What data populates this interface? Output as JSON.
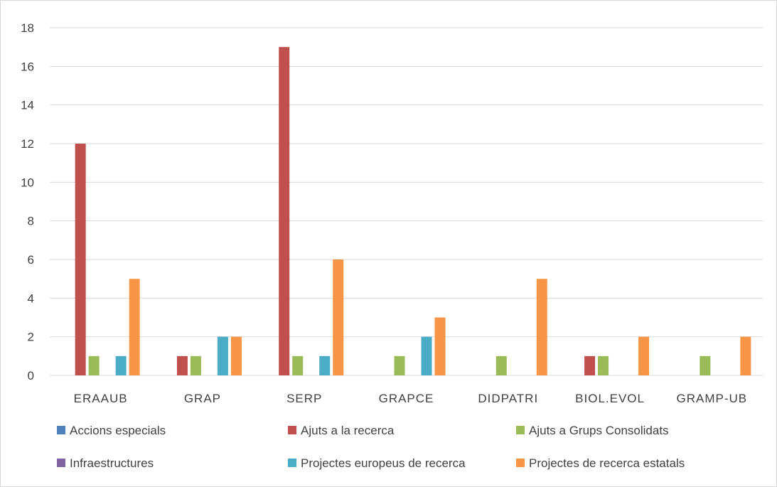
{
  "chart_data": {
    "type": "bar",
    "categories": [
      "ERAAUB",
      "GRAP",
      "SERP",
      "GRAPCE",
      "DIDPATRI",
      "BIOL.EVOL",
      "GRAMP-UB"
    ],
    "ylim": [
      0,
      18
    ],
    "yticks": [
      0,
      2,
      4,
      6,
      8,
      10,
      12,
      14,
      16,
      18
    ],
    "grid": true,
    "legend_position": "bottom",
    "series": [
      {
        "name": "Accions especials",
        "color": "#4f81bd",
        "values": [
          0,
          0,
          0,
          0,
          0,
          0,
          0
        ]
      },
      {
        "name": "Ajuts a la recerca",
        "color": "#c0504d",
        "values": [
          12,
          1,
          17,
          0,
          0,
          1,
          0
        ]
      },
      {
        "name": "Ajuts a Grups Consolidats",
        "color": "#9bbb59",
        "values": [
          1,
          1,
          1,
          1,
          1,
          1,
          1
        ]
      },
      {
        "name": "Infraestructures",
        "color": "#8064a2",
        "values": [
          0,
          0,
          0,
          0,
          0,
          0,
          0
        ]
      },
      {
        "name": "Projectes europeus de recerca",
        "color": "#4bacc6",
        "values": [
          1,
          2,
          1,
          2,
          0,
          0,
          0
        ]
      },
      {
        "name": "Projectes de recerca estatals",
        "color": "#f79646",
        "values": [
          5,
          2,
          6,
          3,
          5,
          2,
          2
        ]
      }
    ]
  }
}
